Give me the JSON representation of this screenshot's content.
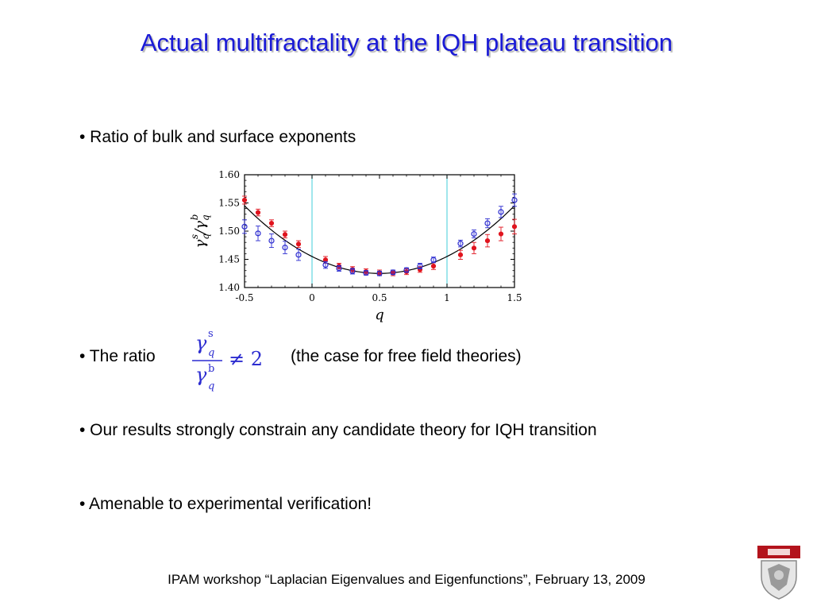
{
  "slide": {
    "title": "Actual multifractality at the IQH plateau transition",
    "bullets": [
      "• Ratio of bulk and surface exponents",
      "• The ratio",
      "• Our results strongly constrain any candidate theory for IQH transition",
      "• Amenable to experimental verification!"
    ],
    "ratio_note": "(the case for free field theories)",
    "formula": {
      "numerator": "γ",
      "num_sup": "s",
      "denominator": "γ",
      "den_sup": "b",
      "sub": "q",
      "relation": "≠ 2"
    },
    "footer": "IPAM workshop “Laplacian Eigenvalues and Eigenfunctions”, February 13, 2009"
  },
  "colors": {
    "title": "#1a1ad6",
    "red_series": "#e0141e",
    "blue_series": "#2c2cd0",
    "fit_curve": "#000000",
    "vertical_lines": "#62d6e0",
    "logo": "#b3131c"
  },
  "chart_data": {
    "type": "scatter",
    "xlabel": "q",
    "ylabel": "γq^s/γq^b",
    "xlim": [
      -0.5,
      1.5
    ],
    "ylim": [
      1.4,
      1.6
    ],
    "xticks": [
      "-0.5",
      "0",
      "0.5",
      "1",
      "1.5"
    ],
    "yticks": [
      "1.40",
      "1.45",
      "1.50",
      "1.55",
      "1.60"
    ],
    "vertical_lines_at": [
      0,
      1
    ],
    "fit_curve": {
      "type": "parabola",
      "vertex_x": 0.5,
      "vertex_y": 1.425,
      "value_at_-0.5": 1.545
    },
    "series": [
      {
        "marker": "filled-circle",
        "x": [
          -0.5,
          -0.4,
          -0.3,
          -0.2,
          -0.1,
          0.1,
          0.2,
          0.3,
          0.4,
          0.5,
          0.6,
          0.7,
          0.8,
          0.9,
          1.1,
          1.2,
          1.3,
          1.4,
          1.5
        ],
        "y": [
          1.555,
          1.533,
          1.514,
          1.494,
          1.477,
          1.449,
          1.438,
          1.432,
          1.428,
          1.426,
          1.426,
          1.428,
          1.432,
          1.438,
          1.458,
          1.47,
          1.483,
          1.495,
          1.508
        ],
        "err": [
          0.007,
          0.006,
          0.006,
          0.006,
          0.006,
          0.006,
          0.005,
          0.005,
          0.005,
          0.005,
          0.005,
          0.005,
          0.005,
          0.006,
          0.008,
          0.01,
          0.011,
          0.012,
          0.013
        ]
      },
      {
        "marker": "open-circle",
        "x": [
          -0.5,
          -0.4,
          -0.3,
          -0.2,
          -0.1,
          0.1,
          0.2,
          0.3,
          0.4,
          0.5,
          0.6,
          0.7,
          0.8,
          0.9,
          1.1,
          1.2,
          1.3,
          1.4,
          1.5
        ],
        "y": [
          1.508,
          1.496,
          1.483,
          1.471,
          1.458,
          1.44,
          1.434,
          1.429,
          1.426,
          1.425,
          1.427,
          1.431,
          1.438,
          1.449,
          1.478,
          1.495,
          1.514,
          1.534,
          1.555
        ],
        "err": [
          0.012,
          0.013,
          0.012,
          0.011,
          0.01,
          0.006,
          0.005,
          0.005,
          0.004,
          0.004,
          0.004,
          0.004,
          0.005,
          0.005,
          0.006,
          0.007,
          0.008,
          0.01,
          0.011
        ]
      }
    ]
  }
}
